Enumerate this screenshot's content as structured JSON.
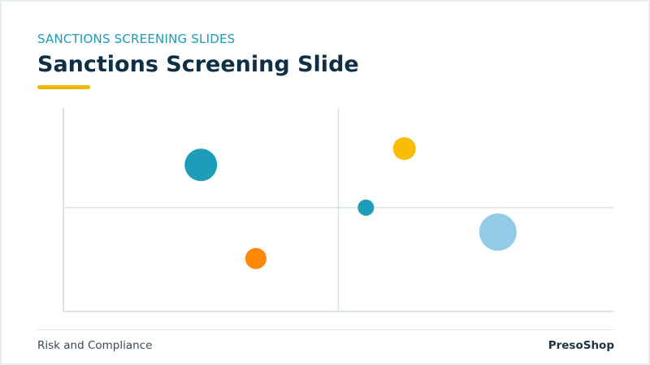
{
  "slide": {
    "eyebrow": "SANCTIONS SCREENING SLIDES",
    "title": "Sanctions Screening Slide",
    "footer_left": "Risk and Compliance",
    "footer_right": "PresoShop"
  },
  "colors": {
    "accent": "#f5b800",
    "title": "#0e2f44",
    "eyebrow": "#1d9bb5",
    "axis": "#d8e3e6"
  },
  "chart_data": {
    "type": "scatter",
    "xlim": [
      0,
      100
    ],
    "ylim": [
      0,
      100
    ],
    "quadrant_dividers": {
      "x": 50,
      "y": 51
    },
    "grid": false,
    "points": [
      {
        "x": 25,
        "y": 72,
        "size": 40,
        "color": "#1e9dbb"
      },
      {
        "x": 62,
        "y": 80,
        "size": 28,
        "color": "#fbbc05"
      },
      {
        "x": 55,
        "y": 51,
        "size": 20,
        "color": "#1e9dbb"
      },
      {
        "x": 79,
        "y": 39,
        "size": 46,
        "color": "#93cbe6"
      },
      {
        "x": 35,
        "y": 26,
        "size": 26,
        "color": "#ff8707"
      }
    ]
  }
}
